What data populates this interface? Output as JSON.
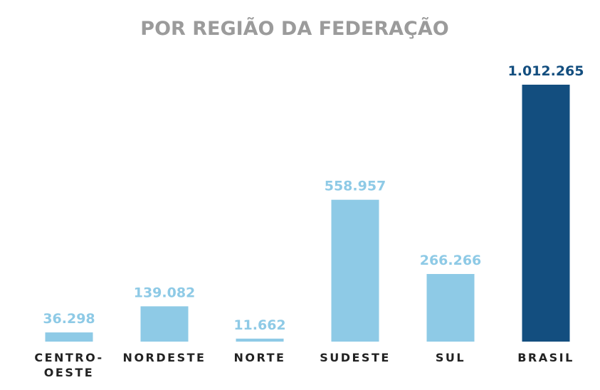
{
  "chart_data": {
    "type": "bar",
    "title": "POR REGIÃO DA FEDERAÇÃO",
    "categories": [
      "CENTRO-OESTE",
      "NORDESTE",
      "NORTE",
      "SUDESTE",
      "SUL",
      "BRASIL"
    ],
    "category_lines": [
      [
        "CENTRO-",
        "OESTE"
      ],
      [
        "NORDESTE"
      ],
      [
        "NORTE"
      ],
      [
        "SUDESTE"
      ],
      [
        "SUL"
      ],
      [
        "BRASIL"
      ]
    ],
    "values": [
      36298,
      139082,
      11662,
      558957,
      266266,
      1012265
    ],
    "value_labels": [
      "36.298",
      "139.082",
      "11.662",
      "558.957",
      "266.266",
      "1.012.265"
    ],
    "ylim": [
      0,
      1012265
    ],
    "grid": false,
    "legend": "none",
    "colors": {
      "regions": "#8ecae6",
      "total": "#134e7f",
      "title": "#9b9b9b",
      "category_text": "#222222"
    },
    "bar_colors": [
      "regions",
      "regions",
      "regions",
      "regions",
      "regions",
      "total"
    ]
  }
}
